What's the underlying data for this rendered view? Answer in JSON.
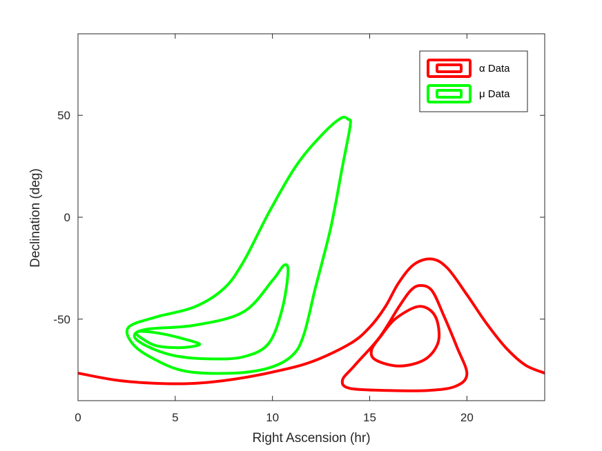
{
  "chart_data": {
    "type": "contour",
    "xlabel": "Right Ascension (hr)",
    "ylabel": "Declination (deg)",
    "xlim": [
      0,
      24
    ],
    "ylim": [
      -90,
      90
    ],
    "xticks": [
      0,
      5,
      10,
      15,
      20
    ],
    "yticks": [
      -50,
      0,
      50
    ],
    "grid": false,
    "legend_position": "top-right",
    "series": [
      {
        "name": "α Data",
        "color": "#ff0000",
        "contours": [
          {
            "level": "outer",
            "points": [
              [
                0,
                -76.5
              ],
              [
                2,
                -80
              ],
              [
                4,
                -81.5
              ],
              [
                6,
                -81.5
              ],
              [
                8,
                -79.5
              ],
              [
                10,
                -76
              ],
              [
                12,
                -71
              ],
              [
                14,
                -62
              ],
              [
                15,
                -54
              ],
              [
                15.8,
                -44
              ],
              [
                16.5,
                -32
              ],
              [
                17.3,
                -23
              ],
              [
                18.2,
                -20.5
              ],
              [
                19,
                -25
              ],
              [
                20,
                -38
              ],
              [
                21,
                -52
              ],
              [
                22,
                -64
              ],
              [
                23,
                -72.5
              ],
              [
                24,
                -76.5
              ]
            ]
          },
          {
            "level": "middle",
            "points": [
              [
                17.6,
                -33.5
              ],
              [
                18.2,
                -36
              ],
              [
                18.8,
                -48
              ],
              [
                19.5,
                -64
              ],
              [
                20,
                -77
              ],
              [
                19.4,
                -83
              ],
              [
                18,
                -85
              ],
              [
                16,
                -85
              ],
              [
                14,
                -84
              ],
              [
                13.6,
                -80
              ],
              [
                14.2,
                -73
              ],
              [
                15.5,
                -59
              ],
              [
                16.5,
                -44
              ],
              [
                17.1,
                -36
              ]
            ]
          },
          {
            "level": "inner",
            "points": [
              [
                17.4,
                -44
              ],
              [
                18.1,
                -45.5
              ],
              [
                18.5,
                -52
              ],
              [
                18.5,
                -62
              ],
              [
                17.8,
                -70
              ],
              [
                16.5,
                -73
              ],
              [
                15.3,
                -70
              ],
              [
                15.1,
                -65
              ],
              [
                15.6,
                -58
              ],
              [
                16.3,
                -50
              ]
            ]
          }
        ]
      },
      {
        "name": "μ Data",
        "color": "#00ff00",
        "contours": [
          {
            "level": "outer",
            "points": [
              [
                13.5,
                48.5
              ],
              [
                13.9,
                48
              ],
              [
                14,
                45
              ],
              [
                13.6,
                25
              ],
              [
                13,
                -5
              ],
              [
                12.2,
                -35
              ],
              [
                11.6,
                -58
              ],
              [
                11,
                -68
              ],
              [
                9.8,
                -74
              ],
              [
                8,
                -76.5
              ],
              [
                5.5,
                -75.5
              ],
              [
                3.8,
                -69
              ],
              [
                2.8,
                -62
              ],
              [
                2.6,
                -54
              ],
              [
                4,
                -49
              ],
              [
                6,
                -44
              ],
              [
                7.5,
                -35
              ],
              [
                8.5,
                -22
              ],
              [
                9.8,
                2
              ],
              [
                11.2,
                25
              ],
              [
                12.5,
                40
              ]
            ]
          },
          {
            "level": "middle",
            "points": [
              [
                10.6,
                -23.5
              ],
              [
                10.8,
                -27
              ],
              [
                10.5,
                -45
              ],
              [
                9.8,
                -62
              ],
              [
                8.5,
                -68.5
              ],
              [
                6.8,
                -69.5
              ],
              [
                5,
                -68
              ],
              [
                3.6,
                -63.5
              ],
              [
                2.9,
                -58.5
              ],
              [
                3.5,
                -55
              ],
              [
                6,
                -53
              ],
              [
                8.5,
                -46.5
              ],
              [
                10,
                -31
              ]
            ]
          },
          {
            "level": "inner",
            "points": [
              [
                3.3,
                -56
              ],
              [
                4.5,
                -57.5
              ],
              [
                6.1,
                -61.5
              ],
              [
                6.1,
                -63
              ],
              [
                5.2,
                -64
              ],
              [
                4,
                -63
              ],
              [
                3.3,
                -59.5
              ],
              [
                3,
                -57
              ]
            ]
          }
        ]
      }
    ]
  }
}
